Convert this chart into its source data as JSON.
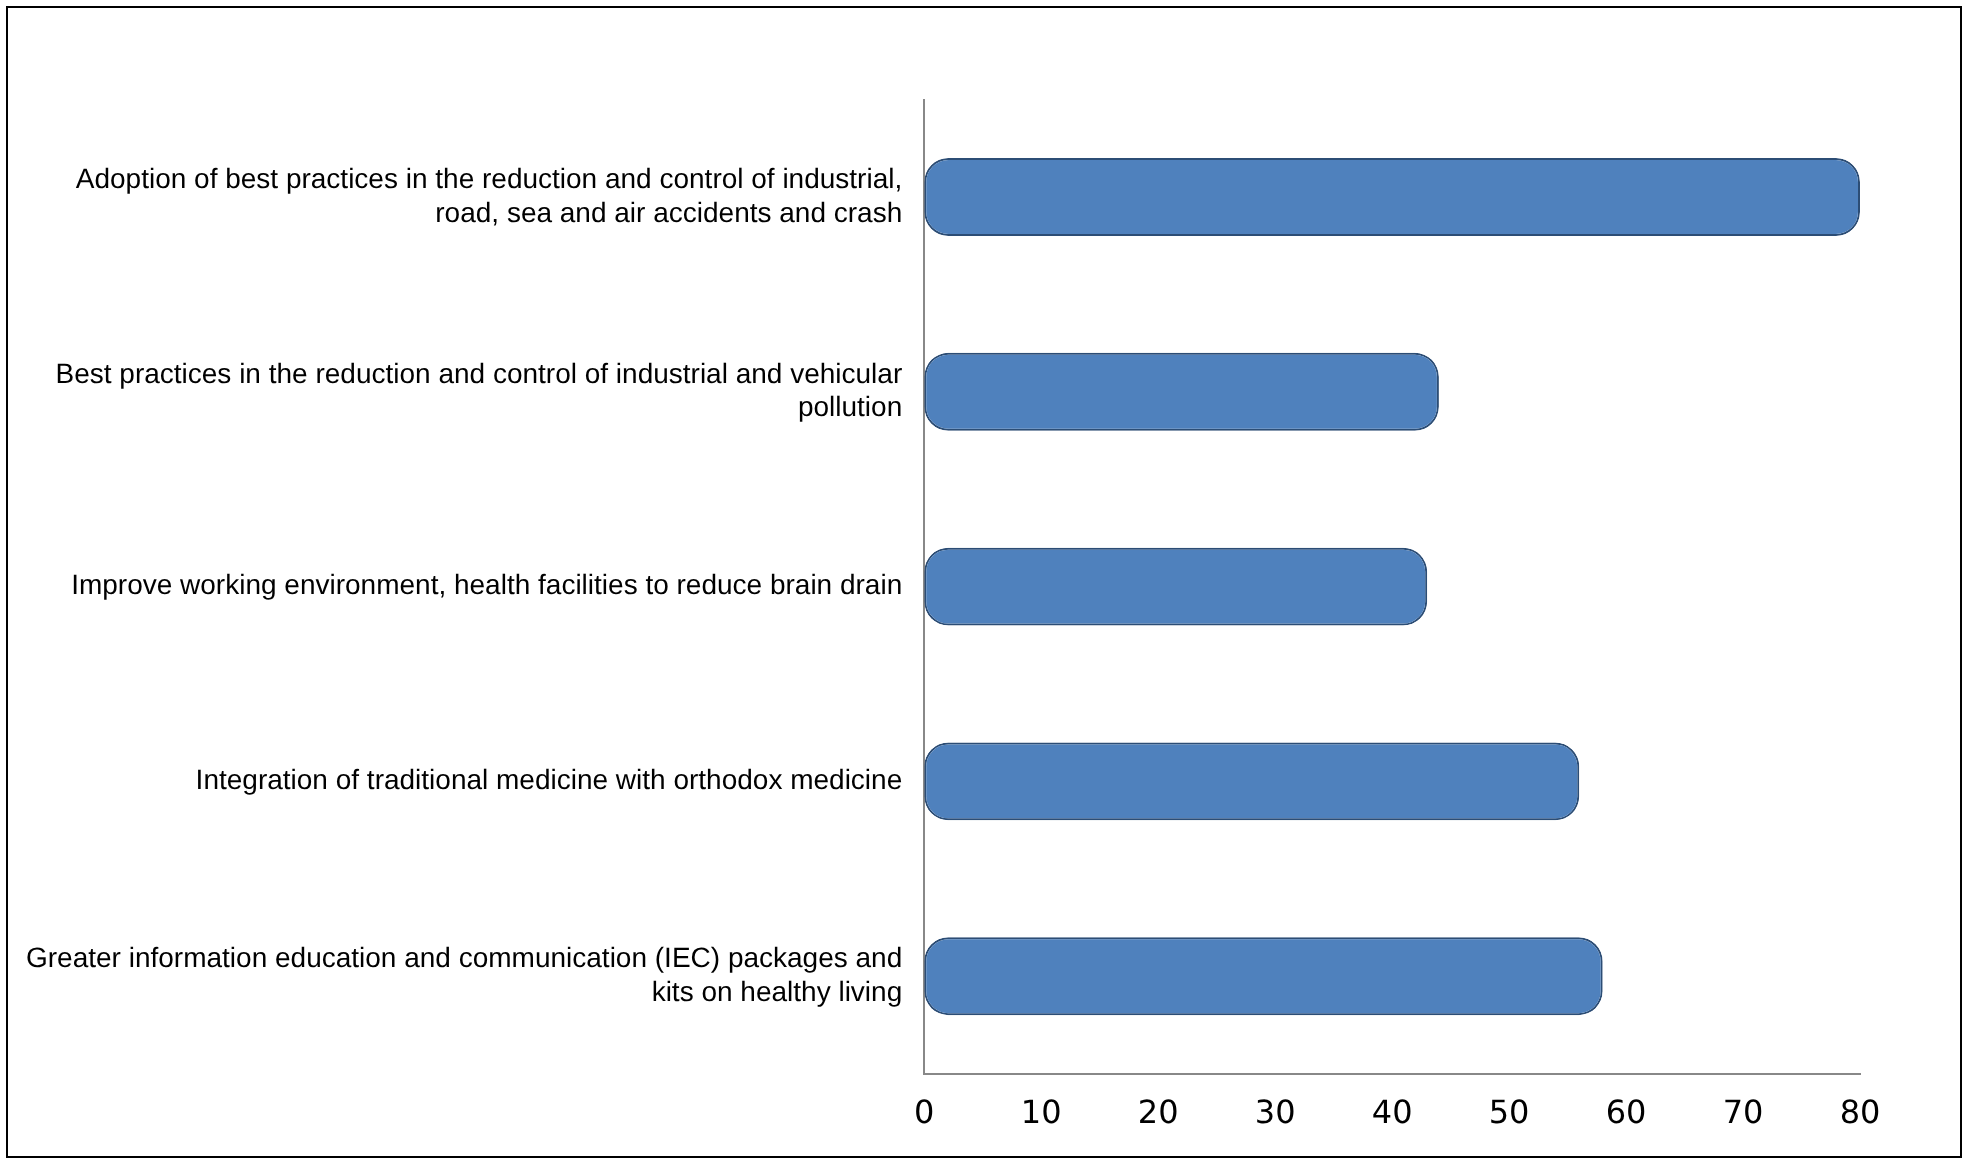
{
  "chart_data": {
    "type": "bar",
    "orientation": "horizontal",
    "categories": [
      "Adoption of best practices in the reduction and control of industrial, road, sea and air accidents and crash",
      "Best practices in the reduction and control of industrial and vehicular pollution",
      "Improve working environment, health facilities to reduce brain drain",
      "Integration of traditional medicine with orthodox medicine",
      "Greater information education and communication (IEC) packages and kits on healthy living"
    ],
    "values": [
      80,
      44,
      43,
      56,
      58
    ],
    "color": "#4f81bd",
    "xlim": [
      0,
      80
    ],
    "xticks": [
      0,
      10,
      20,
      30,
      40,
      50,
      60,
      70,
      80
    ],
    "grid": false,
    "legend": false
  }
}
